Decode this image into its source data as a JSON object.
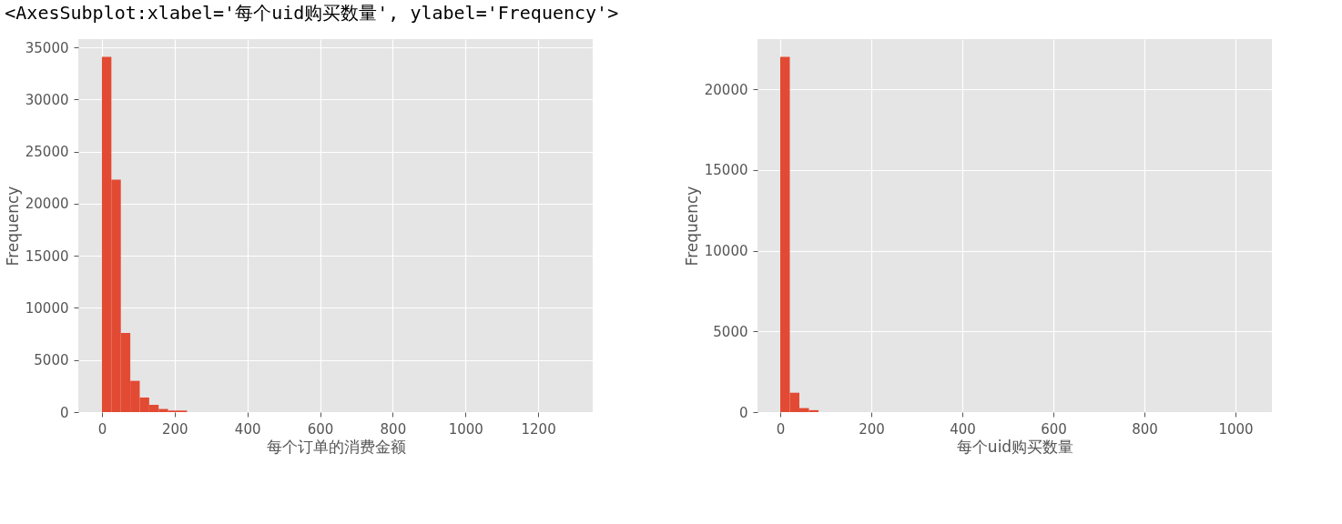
{
  "chart_data": [
    {
      "type": "histogram",
      "xlabel": "每个订单的消费金额",
      "ylabel": "Frequency",
      "color": "#e24a33",
      "annotations": [
        "<AxesSubplot:xlabel='每个uid购买数量', ylabel='Frequency'>"
      ],
      "bins": [
        0,
        26,
        52,
        78,
        104,
        130,
        156,
        182,
        208,
        234
      ],
      "values": [
        34100,
        22300,
        7600,
        3000,
        1400,
        700,
        300,
        150,
        150
      ],
      "xlim": [
        -65,
        1350
      ],
      "xticks": [
        0,
        200,
        400,
        600,
        800,
        1000,
        1200
      ],
      "ylim": [
        0,
        35800
      ],
      "yticks": [
        0,
        5000,
        10000,
        15000,
        20000,
        25000,
        30000,
        35000
      ],
      "grid": true
    },
    {
      "type": "histogram",
      "xlabel": "每个uid购买数量",
      "ylabel": "Frequency",
      "color": "#e24a33",
      "bins": [
        0,
        21,
        42,
        63,
        84
      ],
      "values": [
        22000,
        1200,
        250,
        120
      ],
      "xlim": [
        -50,
        1080
      ],
      "xticks": [
        0,
        200,
        400,
        600,
        800,
        1000
      ],
      "ylim": [
        0,
        23100
      ],
      "yticks": [
        0,
        5000,
        10000,
        15000,
        20000
      ],
      "grid": true
    }
  ]
}
